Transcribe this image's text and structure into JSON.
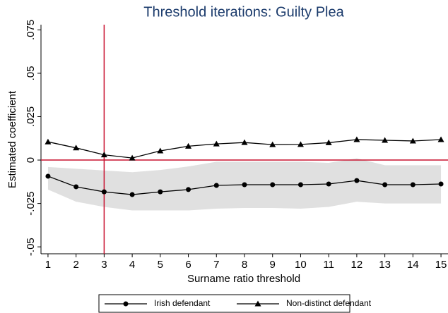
{
  "chart_data": {
    "type": "line",
    "title": "Threshold iterations: Guilty Plea",
    "title_color": "#1a3a6b",
    "x_label": "Surname ratio threshold",
    "y_label": "Estimated coefficient",
    "x": [
      1,
      2,
      3,
      4,
      5,
      6,
      7,
      8,
      9,
      10,
      11,
      12,
      13,
      14,
      15
    ],
    "xlim": [
      0.75,
      15.25
    ],
    "xticks": [
      1,
      2,
      3,
      4,
      5,
      6,
      7,
      8,
      9,
      10,
      11,
      12,
      13,
      14,
      15
    ],
    "ylim": [
      -0.054,
      0.078
    ],
    "yticks": [
      {
        "value": -0.05,
        "label": "-.05"
      },
      {
        "value": -0.025,
        "label": "-.025"
      },
      0,
      {
        "value": 0.025,
        "label": ".025"
      },
      {
        "value": 0.05,
        "label": ".05"
      },
      {
        "value": 0.075,
        "label": ".075"
      }
    ],
    "band": {
      "color": "#e0e0e0",
      "upper": [
        -0.004,
        -0.005,
        -0.006,
        -0.007,
        -0.0057,
        -0.0037,
        -0.001,
        -0.001,
        -0.001,
        -0.001,
        -0.0016,
        0.001,
        -0.003,
        -0.003,
        -0.003
      ],
      "lower": [
        -0.017,
        -0.024,
        -0.027,
        -0.029,
        -0.029,
        -0.029,
        -0.028,
        -0.0276,
        -0.0276,
        -0.028,
        -0.027,
        -0.024,
        -0.025,
        -0.025,
        -0.025
      ]
    },
    "series": [
      {
        "name": "Irish defendant",
        "color": "#000000",
        "marker": "circle",
        "values": [
          -0.0093,
          -0.0154,
          -0.0183,
          -0.0199,
          -0.0183,
          -0.017,
          -0.0146,
          -0.0142,
          -0.0142,
          -0.0142,
          -0.0138,
          -0.0118,
          -0.0142,
          -0.0142,
          -0.0138
        ]
      },
      {
        "name": "Non-distinct defendant",
        "color": "#000000",
        "marker": "triangle",
        "values": [
          0.0105,
          0.007,
          0.003,
          0.0012,
          0.0053,
          0.008,
          0.0093,
          0.0101,
          0.0089,
          0.009,
          0.01,
          0.0118,
          0.0114,
          0.011,
          0.0118
        ]
      }
    ],
    "hline": 0,
    "vline": 3,
    "ref_color": "#c8102e"
  }
}
